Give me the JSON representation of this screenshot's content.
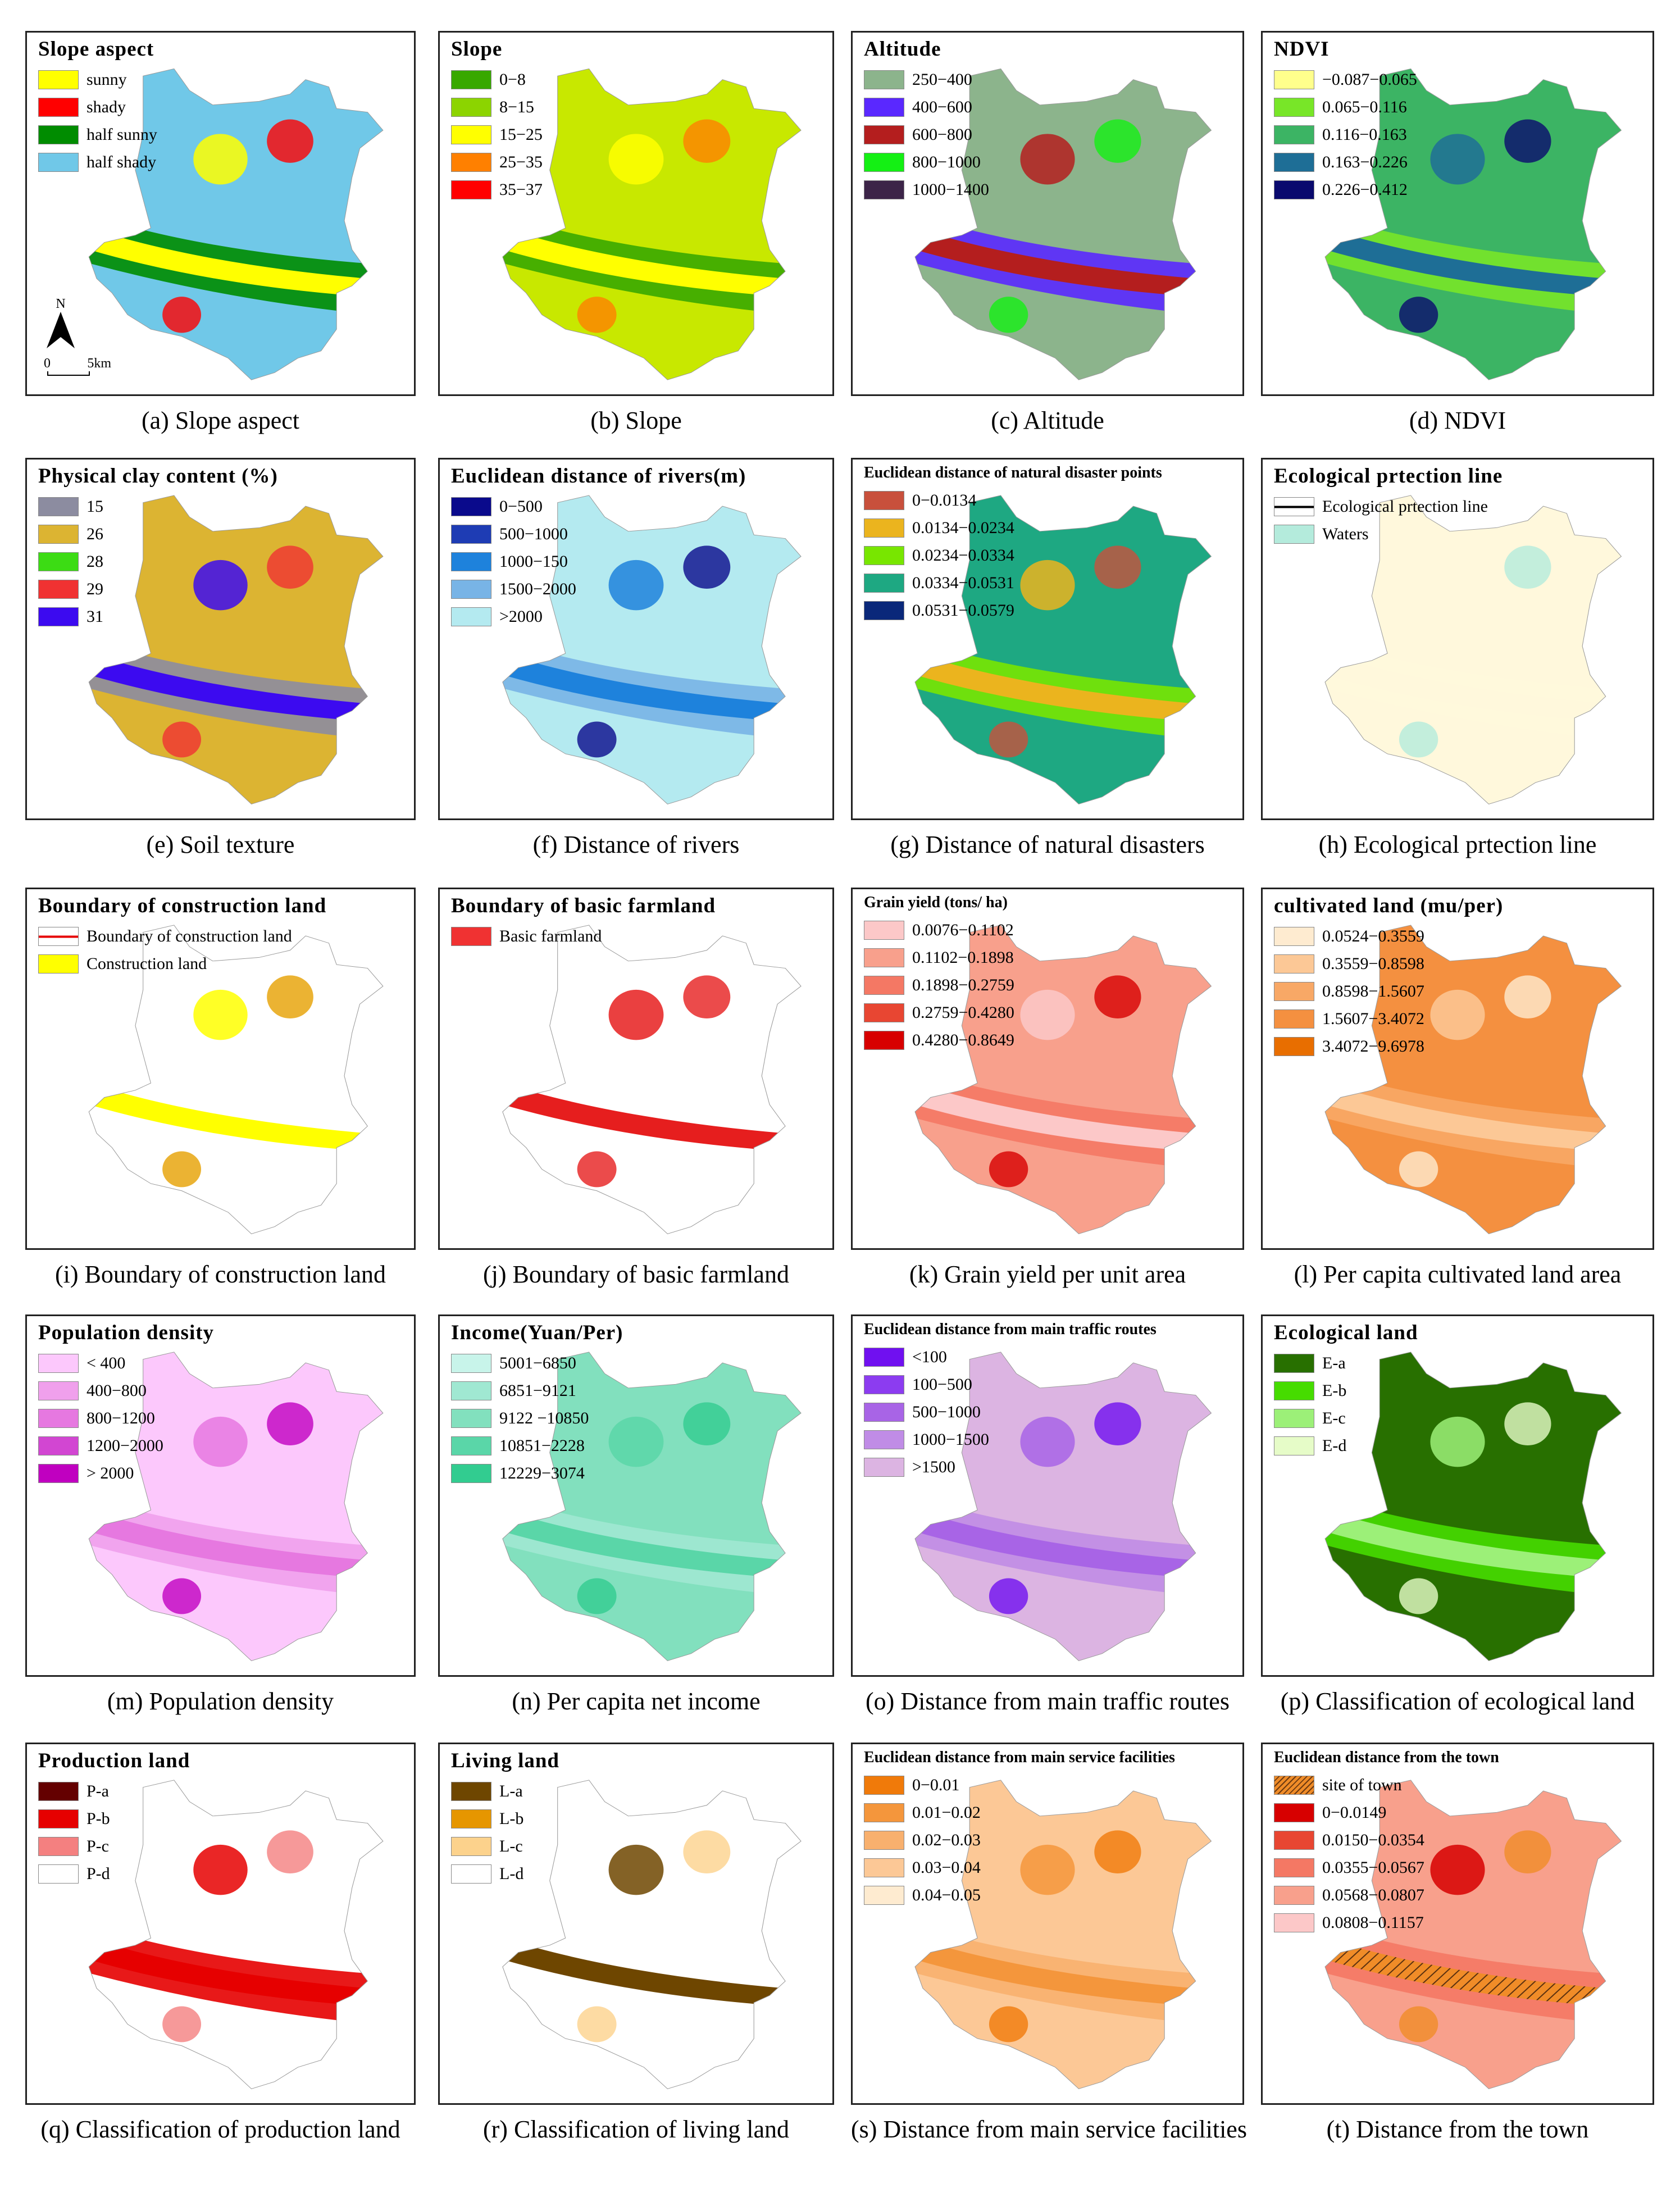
{
  "figure": {
    "panels": [
      {
        "id": "a",
        "caption": "(a) Slope aspect",
        "legend_title": "Slope aspect",
        "legend": [
          {
            "label": "sunny",
            "color": "#ffff00"
          },
          {
            "label": "shady",
            "color": "#ff0000"
          },
          {
            "label": "half sunny",
            "color": "#008c00"
          },
          {
            "label": "half shady",
            "color": "#70c8e8"
          }
        ],
        "map_fill": [
          "#70c8e8",
          "#008c00",
          "#ffff00",
          "#ff0000"
        ],
        "north_label": "N",
        "scale_start": "0",
        "scale_end": "5km"
      },
      {
        "id": "b",
        "caption": "(b) Slope",
        "legend_title": "Slope",
        "legend": [
          {
            "label": "0−8",
            "color": "#38a800"
          },
          {
            "label": "8−15",
            "color": "#8cd400"
          },
          {
            "label": "15−25",
            "color": "#ffff00"
          },
          {
            "label": "25−35",
            "color": "#ff8000"
          },
          {
            "label": "35−37",
            "color": "#ff0000"
          }
        ],
        "map_fill": [
          "#c8e800",
          "#38a800",
          "#ffff00",
          "#ff8000"
        ]
      },
      {
        "id": "c",
        "caption": "(c) Altitude",
        "legend_title": "Altitude",
        "legend": [
          {
            "label": "250−400",
            "color": "#8cb48c"
          },
          {
            "label": "400−600",
            "color": "#5a28ff"
          },
          {
            "label": "600−800",
            "color": "#b41e1e"
          },
          {
            "label": "800−1000",
            "color": "#14f014"
          },
          {
            "label": "1000−1400",
            "color": "#3c2448"
          }
        ],
        "map_fill": [
          "#8cb48c",
          "#5a28ff",
          "#b41e1e",
          "#14f014"
        ]
      },
      {
        "id": "d",
        "caption": "(d) NDVI",
        "legend_title": "NDVI",
        "legend": [
          {
            "label": "−0.087−0.065",
            "color": "#ffff8c"
          },
          {
            "label": "0.065−0.116",
            "color": "#78e628"
          },
          {
            "label": "0.116−0.163",
            "color": "#3cb464"
          },
          {
            "label": "0.163−0.226",
            "color": "#1e6e96"
          },
          {
            "label": "0.226−0.412",
            "color": "#0a0a6e"
          }
        ],
        "map_fill": [
          "#3cb464",
          "#78e628",
          "#1e6e96",
          "#0a0a6e"
        ]
      },
      {
        "id": "e",
        "caption": "(e) Soil texture",
        "legend_title": "Physical clay content (%)",
        "legend": [
          {
            "label": "15",
            "color": "#8c8ca0"
          },
          {
            "label": "26",
            "color": "#dcb432"
          },
          {
            "label": "28",
            "color": "#3cdc14"
          },
          {
            "label": "29",
            "color": "#f03232"
          },
          {
            "label": "31",
            "color": "#3c0af0"
          }
        ],
        "map_fill": [
          "#dcb432",
          "#8c8ca0",
          "#3c0af0",
          "#f03232"
        ]
      },
      {
        "id": "f",
        "caption": "(f) Distance of rivers",
        "legend_title": "Euclidean distance of rivers(m)",
        "legend": [
          {
            "label": "0−500",
            "color": "#0a0a8c"
          },
          {
            "label": "500−1000",
            "color": "#1e3cb4"
          },
          {
            "label": "1000−150",
            "color": "#1e82dc"
          },
          {
            "label": "1500−2000",
            "color": "#78b4e6"
          },
          {
            "label": ">2000",
            "color": "#b4eaf0"
          }
        ],
        "map_fill": [
          "#b4eaf0",
          "#78b4e6",
          "#1e82dc",
          "#0a0a8c"
        ]
      },
      {
        "id": "g",
        "caption": "(g) Distance of natural disasters",
        "legend_title": "Euclidean distance of natural disaster points",
        "legend_small": true,
        "legend": [
          {
            "label": "0−0.0134",
            "color": "#c8503c"
          },
          {
            "label": "0.0134−0.0234",
            "color": "#ebb41e"
          },
          {
            "label": "0.0234−0.0334",
            "color": "#78e600"
          },
          {
            "label": "0.0334−0.0531",
            "color": "#1ea882"
          },
          {
            "label": "0.0531−0.0579",
            "color": "#0a287a"
          }
        ],
        "map_fill": [
          "#1ea882",
          "#78e600",
          "#ebb41e",
          "#c8503c"
        ]
      },
      {
        "id": "h",
        "caption": "(h) Ecological prtection line",
        "legend_title": "Ecological prtection line",
        "legend": [
          {
            "label": "Ecological prtection line",
            "color": "#ffffff",
            "line": "#000000"
          },
          {
            "label": "Waters",
            "color": "#b4ebdc"
          }
        ],
        "map_fill": [
          "#fff8dc",
          "#fff8dc",
          "#fff8dc",
          "#b4ebdc"
        ]
      },
      {
        "id": "i",
        "caption": "(i) Boundary of construction land",
        "legend_title": "Boundary of construction land",
        "legend": [
          {
            "label": "Boundary of construction land",
            "color": "#ffffff",
            "line": "#e60000"
          },
          {
            "label": "Construction land",
            "color": "#ffff00"
          }
        ],
        "map_fill": [
          "#ffffff",
          "#ffffff",
          "#ffff00",
          "#e6a000"
        ]
      },
      {
        "id": "j",
        "caption": "(j) Boundary of basic farmland",
        "legend_title": "Boundary of basic farmland",
        "legend": [
          {
            "label": "Basic farmland",
            "color": "#f03232"
          }
        ],
        "map_fill": [
          "#ffffff",
          "#ffffff",
          "#e61e1e",
          "#e61e1e"
        ]
      },
      {
        "id": "k",
        "caption": "(k) Grain yield per unit area",
        "legend_title": "Grain yield (tons/ ha)",
        "legend_small": true,
        "legend": [
          {
            "label": "0.0076−0.1102",
            "color": "#fcc8c8"
          },
          {
            "label": "0.1102−0.1898",
            "color": "#f8a08c"
          },
          {
            "label": "0.1898−0.2759",
            "color": "#f47864"
          },
          {
            "label": "0.2759−0.4280",
            "color": "#e84632"
          },
          {
            "label": "0.4280−0.8649",
            "color": "#d70000"
          }
        ],
        "map_fill": [
          "#f8a08c",
          "#f47864",
          "#fcc8c8",
          "#d70000"
        ]
      },
      {
        "id": "l",
        "caption": "(l) Per capita cultivated land area",
        "legend_title": "cultivated land (mu/per)",
        "legend": [
          {
            "label": "0.0524−0.3559",
            "color": "#feebd0"
          },
          {
            "label": "0.3559−0.8598",
            "color": "#fcc896"
          },
          {
            "label": "0.8598−1.5607",
            "color": "#f8a866"
          },
          {
            "label": "1.5607−3.4072",
            "color": "#f49040"
          },
          {
            "label": "3.4072−9.6978",
            "color": "#e86e00"
          }
        ],
        "map_fill": [
          "#f49040",
          "#f8a866",
          "#fcc896",
          "#feebd0"
        ]
      },
      {
        "id": "m",
        "caption": "(m) Population density",
        "legend_title": "Population density",
        "legend": [
          {
            "label": "< 400",
            "color": "#fcc8fc"
          },
          {
            "label": "400−800",
            "color": "#f0a0ec"
          },
          {
            "label": "800−1200",
            "color": "#e678e0"
          },
          {
            "label": "1200−2000",
            "color": "#d246d2"
          },
          {
            "label": "> 2000",
            "color": "#c000c0"
          }
        ],
        "map_fill": [
          "#fcc8fc",
          "#f0a0ec",
          "#e678e0",
          "#c000c0"
        ]
      },
      {
        "id": "n",
        "caption": "(n) Per capita net income",
        "legend_title": "Income(Yuan/Per)",
        "legend": [
          {
            "label": "5001−6850",
            "color": "#c8f4ea"
          },
          {
            "label": "6851−9121",
            "color": "#a0e8d2"
          },
          {
            "label": "9122 −10850",
            "color": "#82e0be"
          },
          {
            "label": "10851−2228",
            "color": "#5ad6a8"
          },
          {
            "label": "12229−3074",
            "color": "#32cc90"
          }
        ],
        "map_fill": [
          "#82e0be",
          "#a0e8d2",
          "#5ad6a8",
          "#32cc90"
        ]
      },
      {
        "id": "o",
        "caption": "(o) Distance from main traffic routes",
        "legend_title": "Euclidean distance from main traffic routes",
        "legend_small": true,
        "legend": [
          {
            "label": "<100",
            "color": "#7010f0"
          },
          {
            "label": "100−500",
            "color": "#8c3cf0"
          },
          {
            "label": "500−1000",
            "color": "#a864e6"
          },
          {
            "label": "1000−1500",
            "color": "#c08ce6"
          },
          {
            "label": ">1500",
            "color": "#dcb4e2"
          }
        ],
        "map_fill": [
          "#dcb4e2",
          "#c08ce6",
          "#a864e6",
          "#7010f0"
        ]
      },
      {
        "id": "p",
        "caption": "(p) Classification of ecological land",
        "legend_title": "Ecological land",
        "legend": [
          {
            "label": "E-a",
            "color": "#287000"
          },
          {
            "label": "E-b",
            "color": "#46dc00"
          },
          {
            "label": "E-c",
            "color": "#9cf078"
          },
          {
            "label": "E-d",
            "color": "#e6fcc8"
          }
        ],
        "map_fill": [
          "#287000",
          "#46dc00",
          "#9cf078",
          "#e6fcc8"
        ]
      },
      {
        "id": "q",
        "caption": "(q) Classification of production land",
        "legend_title": "Production land",
        "legend": [
          {
            "label": "P-a",
            "color": "#640000"
          },
          {
            "label": "P-b",
            "color": "#e60000"
          },
          {
            "label": "P-c",
            "color": "#f48080"
          },
          {
            "label": "P-d",
            "color": "#ffffff"
          }
        ],
        "map_fill": [
          "#ffffff",
          "#e60000",
          "#e60000",
          "#f48080"
        ]
      },
      {
        "id": "r",
        "caption": "(r) Classification of living land",
        "legend_title": "Living land",
        "legend": [
          {
            "label": "L-a",
            "color": "#6e4600"
          },
          {
            "label": "L-b",
            "color": "#e69600"
          },
          {
            "label": "L-c",
            "color": "#fcd28c"
          },
          {
            "label": "L-d",
            "color": "#ffffff"
          }
        ],
        "map_fill": [
          "#ffffff",
          "#ffffff",
          "#6e4600",
          "#fcd28c"
        ]
      },
      {
        "id": "s",
        "caption": "(s) Distance from main service facilities",
        "legend_title": "Euclidean distance from main service facilities",
        "legend_small": true,
        "legend": [
          {
            "label": "0−0.01",
            "color": "#f07a0a"
          },
          {
            "label": "0.01−0.02",
            "color": "#f4963c"
          },
          {
            "label": "0.02−0.03",
            "color": "#f8b06e"
          },
          {
            "label": "0.03−0.04",
            "color": "#fcc896"
          },
          {
            "label": "0.04−0.05",
            "color": "#feebd0"
          }
        ],
        "map_fill": [
          "#fcc896",
          "#f8b06e",
          "#f4963c",
          "#f07a0a"
        ]
      },
      {
        "id": "t",
        "caption": "(t) Distance from  the town",
        "legend_title": "Euclidean distance from the town",
        "legend_small": true,
        "legend": [
          {
            "label": "site of town",
            "color": "#f08c28",
            "hatch": true
          },
          {
            "label": "0−0.0149",
            "color": "#d70000"
          },
          {
            "label": "0.0150−0.0354",
            "color": "#e84632"
          },
          {
            "label": "0.0355−0.0567",
            "color": "#f47864"
          },
          {
            "label": "0.0568−0.0807",
            "color": "#f8a08c"
          },
          {
            "label": "0.0808−0.1157",
            "color": "#fcc8c8"
          }
        ],
        "map_fill": [
          "#f8a08c",
          "#f47864",
          "#d70000",
          "#f08c28"
        ]
      }
    ]
  }
}
